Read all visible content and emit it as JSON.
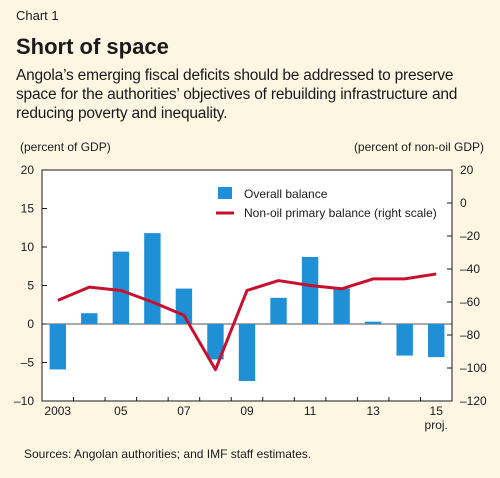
{
  "header": {
    "chart_label": "Chart 1",
    "title": "Short of space",
    "subtitle": "Angola’s emerging fiscal deficits should be addressed to preserve space for the authorities’ objectives of rebuilding infrastructure and reducing poverty and inequality."
  },
  "axes": {
    "left_unit": "(percent of GDP)",
    "right_unit": "(percent of non-oil GDP)"
  },
  "source": "Sources: Angolan authorities; and IMF staff estimates.",
  "colors": {
    "background": "#fdf6e3",
    "plot_background": "#ffffff",
    "bar": "#1f8fd6",
    "line": "#c8102e"
  },
  "chart_data": {
    "type": "bar",
    "title": "Short of space",
    "x": [
      2003,
      2004,
      2005,
      2006,
      2007,
      2008,
      2009,
      2010,
      2011,
      2012,
      2013,
      2014,
      2015
    ],
    "x_tick_labels": [
      "2003",
      "05",
      "07",
      "09",
      "11",
      "13",
      "15"
    ],
    "x_tick_years": [
      2003,
      2005,
      2007,
      2009,
      2011,
      2013,
      2015
    ],
    "x_extra_label": "proj.",
    "series": [
      {
        "name": "Overall balance",
        "type": "bar",
        "axis": "left",
        "values": [
          -5.9,
          1.4,
          9.4,
          11.8,
          4.6,
          -4.6,
          -7.4,
          3.4,
          8.7,
          4.6,
          0.3,
          -4.1,
          -4.3
        ]
      },
      {
        "name": "Non-oil primary balance (right scale)",
        "type": "line",
        "axis": "right",
        "values": [
          -59,
          -51,
          -53,
          -60,
          -68,
          -101,
          -53,
          -47,
          -50,
          -52,
          -46,
          -46,
          -43
        ]
      }
    ],
    "y_left": {
      "min": -10,
      "max": 20,
      "ticks": [
        20,
        15,
        10,
        5,
        0,
        -5,
        -10
      ]
    },
    "y_right": {
      "min": -120,
      "max": 20,
      "ticks": [
        20,
        0,
        -20,
        -40,
        -60,
        -80,
        -100,
        -120
      ]
    },
    "legend_position": "top-right",
    "grid": false
  }
}
